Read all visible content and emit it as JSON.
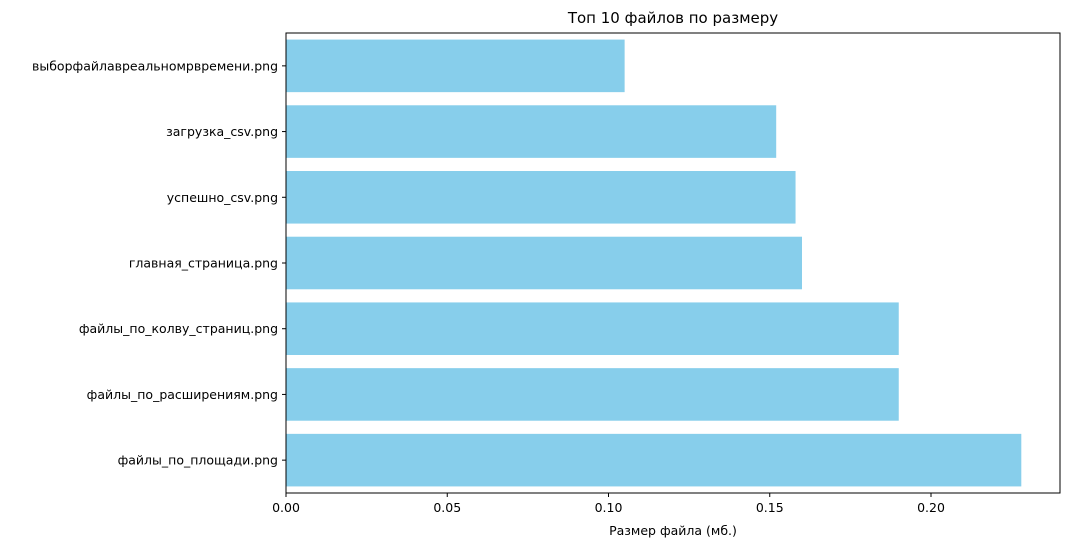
{
  "chart_data": {
    "type": "bar",
    "orientation": "horizontal",
    "title": "Топ 10 файлов по размеру",
    "xlabel": "Размер файла (мб.)",
    "ylabel": "",
    "categories": [
      "выборфайлавреальномрвремени.png",
      "загрузка_csv.png",
      "успешно_csv.png",
      "главная_страница.png",
      "файлы_по_колву_страниц.png",
      "файлы_по_расширениям.png",
      "файлы_по_площади.png"
    ],
    "values": [
      0.105,
      0.152,
      0.158,
      0.16,
      0.19,
      0.19,
      0.228
    ],
    "xlim": [
      0,
      0.24
    ],
    "xticks": [
      0.0,
      0.05,
      0.1,
      0.15,
      0.2
    ],
    "xtick_labels": [
      "0.00",
      "0.05",
      "0.10",
      "0.15",
      "0.20"
    ],
    "bar_color": "#87ceeb",
    "grid": false,
    "legend": false
  }
}
